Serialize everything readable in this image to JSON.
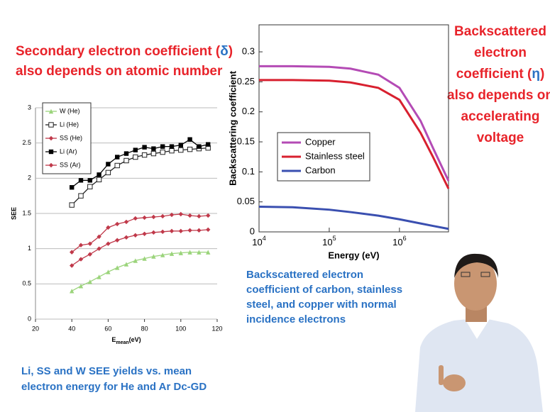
{
  "left_heading": {
    "text": "Secondary electron coefficient (",
    "symbol": "δ",
    "close": ")",
    "line2": "also depends on atomic number"
  },
  "right_heading": {
    "line1": "Backscattered",
    "line2": "electron",
    "line3": "coefficient (",
    "symbol": "η",
    "close": ")",
    "line4": "also depends on",
    "line5": "accelerating",
    "line6": "voltage"
  },
  "right_caption": [
    "Backscattered electron",
    "coefficient of carbon, stainless",
    "steel, and copper with normal",
    "incidence electrons"
  ],
  "left_caption": [
    "Li, SS and W SEE yields vs. mean",
    "electron energy for He and Ar Dc-GD"
  ],
  "chart_data": [
    {
      "type": "line",
      "ylabel": "SEE",
      "xlabel": {
        "main": "E",
        "sub": "mean",
        "unit": "(eV)"
      },
      "x": [
        40,
        45,
        50,
        55,
        60,
        65,
        70,
        75,
        80,
        85,
        90,
        95,
        100,
        105,
        110,
        115
      ],
      "xlim": [
        20,
        120
      ],
      "xticks": [
        20,
        40,
        60,
        80,
        100,
        120
      ],
      "ylim": [
        0,
        3
      ],
      "yticks": [
        0,
        0.5,
        1,
        1.5,
        2,
        2.5,
        3
      ],
      "grid": true,
      "legend": "upper left",
      "series": [
        {
          "name": "W (He)",
          "color": "#9bd47b",
          "marker": "triangle",
          "values": [
            0.4,
            0.47,
            0.53,
            0.6,
            0.67,
            0.73,
            0.78,
            0.83,
            0.86,
            0.89,
            0.91,
            0.93,
            0.94,
            0.95,
            0.95,
            0.95
          ]
        },
        {
          "name": "Li (He)",
          "color": "#222222",
          "marker": "open-square",
          "values": [
            1.62,
            1.75,
            1.88,
            1.98,
            2.08,
            2.18,
            2.25,
            2.3,
            2.33,
            2.35,
            2.37,
            2.39,
            2.4,
            2.41,
            2.42,
            2.43
          ]
        },
        {
          "name": "SS (He)",
          "color": "#c0394a",
          "marker": "diamond",
          "values": [
            0.76,
            0.85,
            0.92,
            1.0,
            1.07,
            1.12,
            1.16,
            1.19,
            1.21,
            1.23,
            1.24,
            1.25,
            1.25,
            1.26,
            1.26,
            1.27
          ]
        },
        {
          "name": "Li (Ar)",
          "color": "#000000",
          "marker": "square",
          "values": [
            1.87,
            1.97,
            1.97,
            2.05,
            2.2,
            2.3,
            2.35,
            2.4,
            2.44,
            2.42,
            2.45,
            2.45,
            2.47,
            2.55,
            2.45,
            2.48
          ]
        },
        {
          "name": "SS (Ar)",
          "color": "#c0394a",
          "marker": "diamond",
          "values": [
            0.95,
            1.05,
            1.07,
            1.17,
            1.3,
            1.35,
            1.38,
            1.43,
            1.44,
            1.45,
            1.46,
            1.48,
            1.49,
            1.47,
            1.46,
            1.47
          ]
        }
      ]
    },
    {
      "type": "line",
      "ylabel": "Backscattering coefficient",
      "xlabel": "Energy  (eV)",
      "log_x": true,
      "x": [
        10000,
        30000,
        100000,
        200000,
        500000,
        1000000,
        2000000,
        3000000,
        5000000
      ],
      "xlim": [
        10000,
        5000000
      ],
      "xticks": [
        {
          "value": 10000,
          "label": "10",
          "exponent": "4"
        },
        {
          "value": 100000,
          "label": "10",
          "exponent": "5"
        },
        {
          "value": 1000000,
          "label": "10",
          "exponent": "6"
        }
      ],
      "ylim": [
        0,
        0.345
      ],
      "yticks": [
        0,
        0.05,
        0.1,
        0.15,
        0.2,
        0.25,
        0.3
      ],
      "legend": "center left",
      "series": [
        {
          "name": "Copper",
          "color": "#b44bb5",
          "values": [
            0.276,
            0.276,
            0.275,
            0.272,
            0.262,
            0.24,
            0.185,
            0.14,
            0.085
          ]
        },
        {
          "name": "Stainless steel",
          "color": "#d8202f",
          "values": [
            0.253,
            0.253,
            0.252,
            0.249,
            0.24,
            0.22,
            0.165,
            0.125,
            0.072
          ]
        },
        {
          "name": "Carbon",
          "color": "#3a4fb0",
          "values": [
            0.042,
            0.041,
            0.037,
            0.033,
            0.027,
            0.021,
            0.014,
            0.01,
            0.005
          ]
        }
      ]
    }
  ]
}
